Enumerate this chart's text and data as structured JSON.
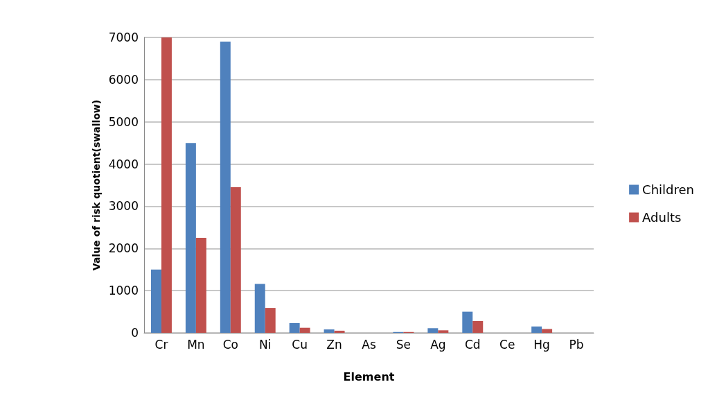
{
  "chart_data": {
    "type": "bar",
    "xlabel": "Element",
    "ylabel": "Value of risk quotient(swallow)",
    "categories": [
      "Cr",
      "Mn",
      "Co",
      "Ni",
      "Cu",
      "Zn",
      "As",
      "Se",
      "Ag",
      "Cd",
      "Ce",
      "Hg",
      "Pb"
    ],
    "series": [
      {
        "name": "Children",
        "color": "#4f81bd",
        "values": [
          1500,
          4500,
          6900,
          1160,
          230,
          80,
          0,
          20,
          110,
          500,
          0,
          150,
          0
        ]
      },
      {
        "name": "Adults",
        "color": "#c0504d",
        "values": [
          7000,
          2250,
          3450,
          590,
          120,
          50,
          0,
          20,
          60,
          280,
          0,
          90,
          0
        ]
      }
    ],
    "ylim": [
      0,
      7000
    ],
    "yticks": [
      0,
      1000,
      2000,
      3000,
      4000,
      5000,
      6000,
      7000
    ],
    "grid": "y",
    "legend": "right"
  }
}
